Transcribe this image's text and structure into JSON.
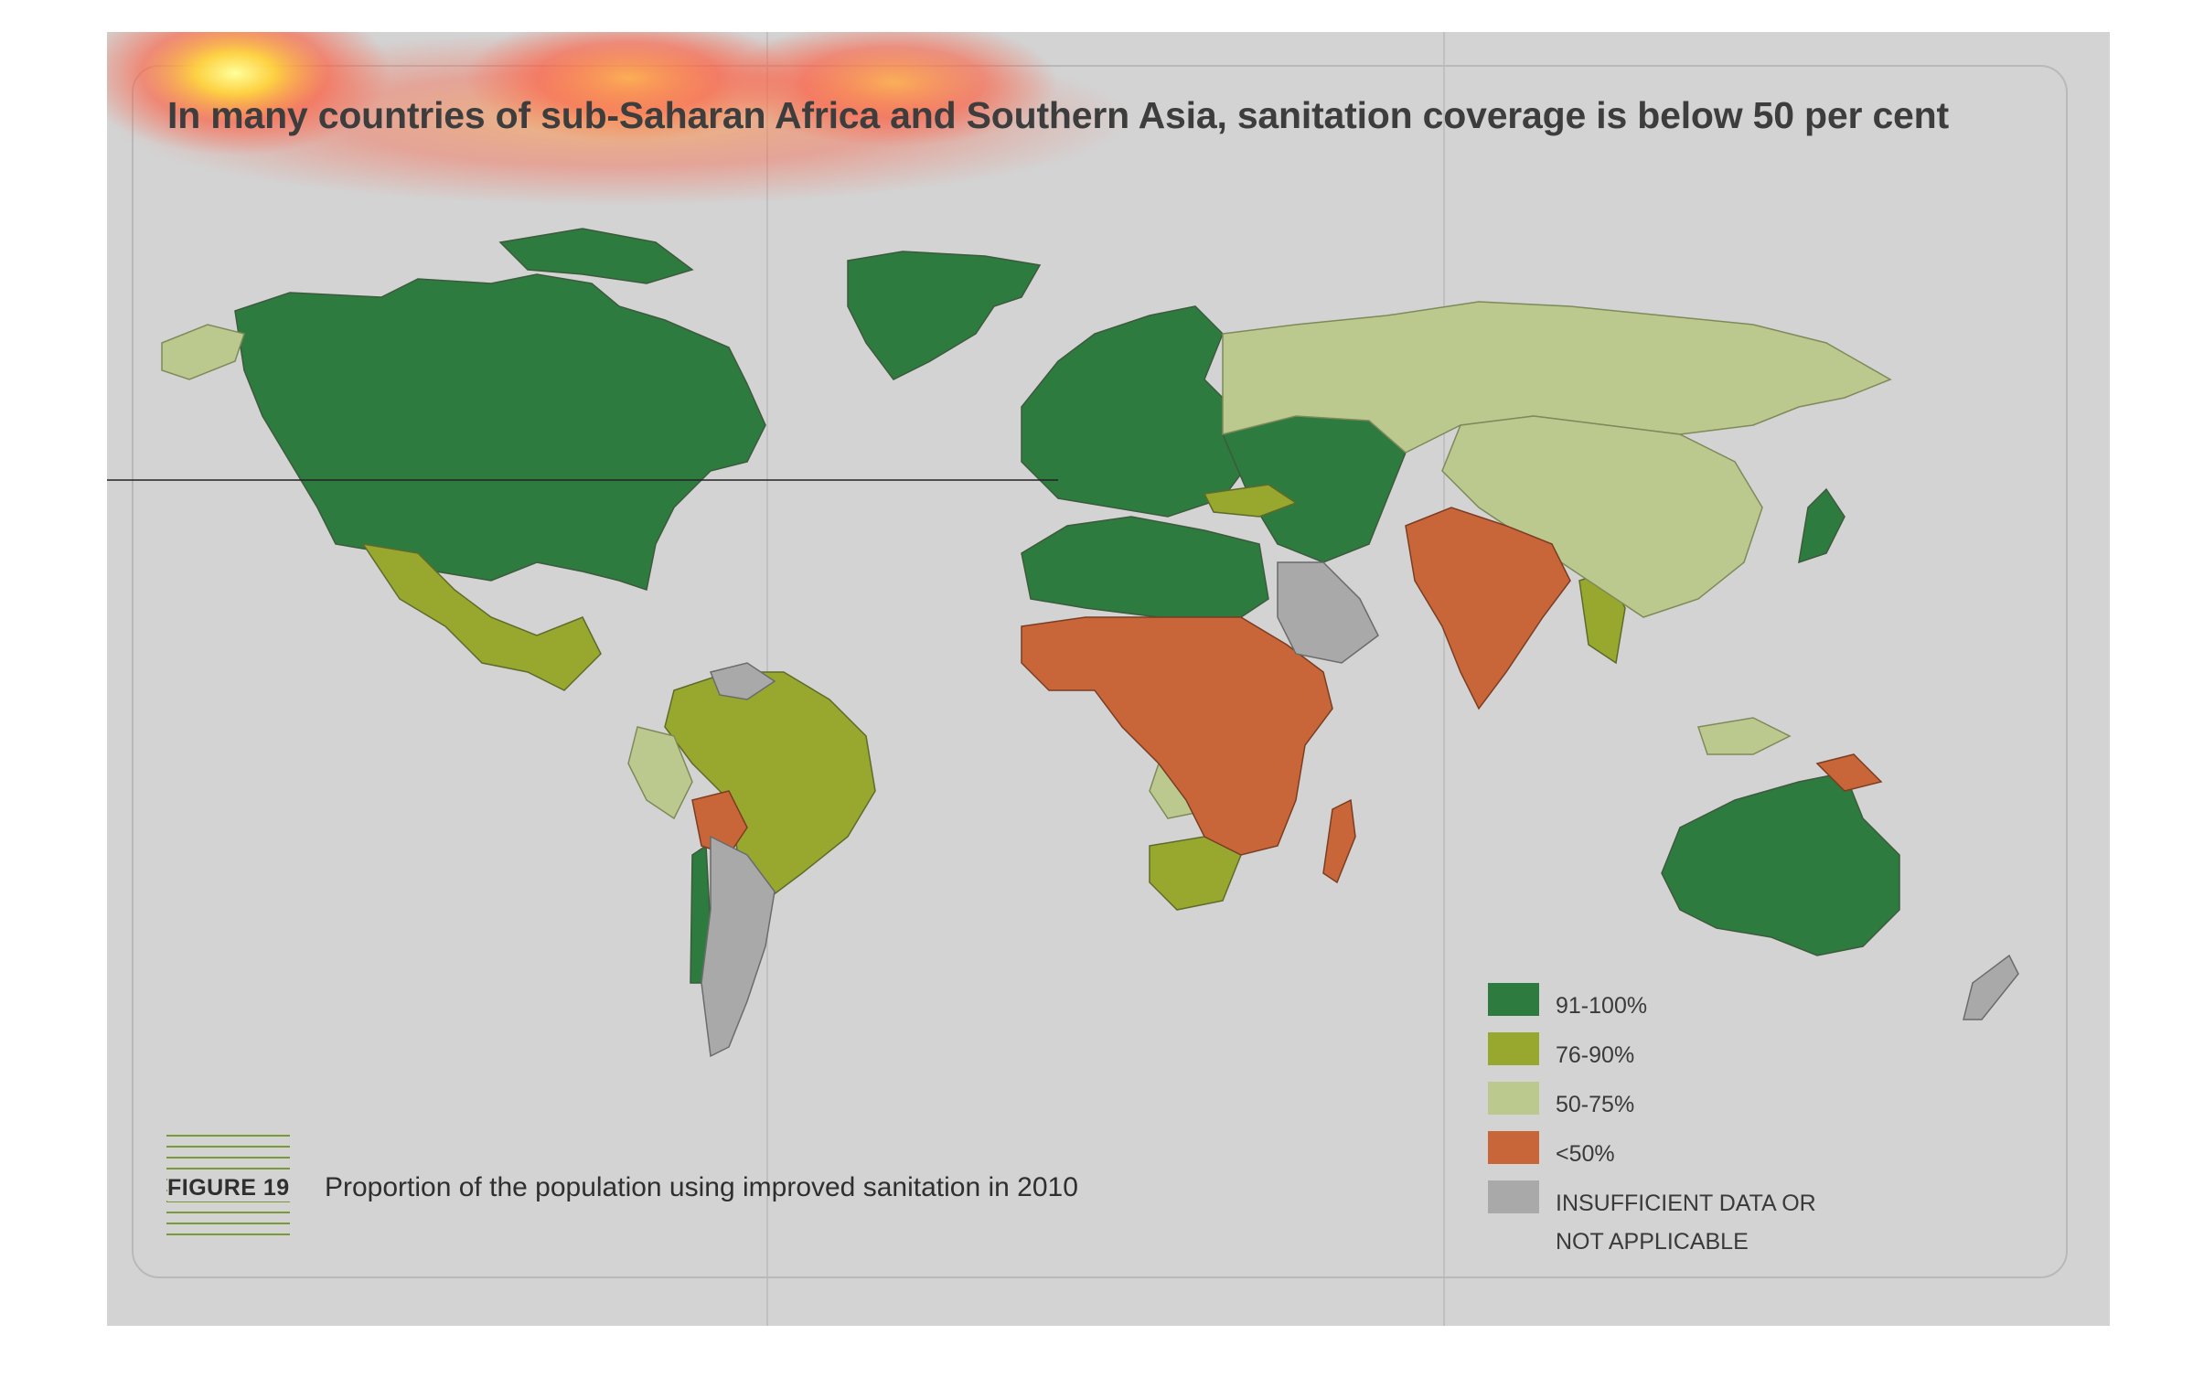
{
  "title": "In many countries of sub-Saharan Africa and Southern Asia, sanitation coverage is below 50 per cent",
  "figure": {
    "label": "FIGURE 19",
    "caption": "Proportion of the population using improved sanitation in 2010"
  },
  "colors": {
    "background": "#d3d3d3",
    "cat_91_100": "#2e7b40",
    "cat_76_90": "#98a82e",
    "cat_50_75": "#bcc98e",
    "cat_below_50": "#c8663a",
    "cat_no_data": "#a9a9a9",
    "heat": "#ff5a3c"
  },
  "legend": [
    {
      "label": "91-100%",
      "color": "#2e7b40"
    },
    {
      "label": "76-90%",
      "color": "#98a82e"
    },
    {
      "label": "50-75%",
      "color": "#bcc98e"
    },
    {
      "label": "<50%",
      "color": "#c8663a"
    },
    {
      "label": "INSUFFICIENT DATA OR",
      "label2": "NOT APPLICABLE",
      "color": "#a9a9a9"
    }
  ]
}
